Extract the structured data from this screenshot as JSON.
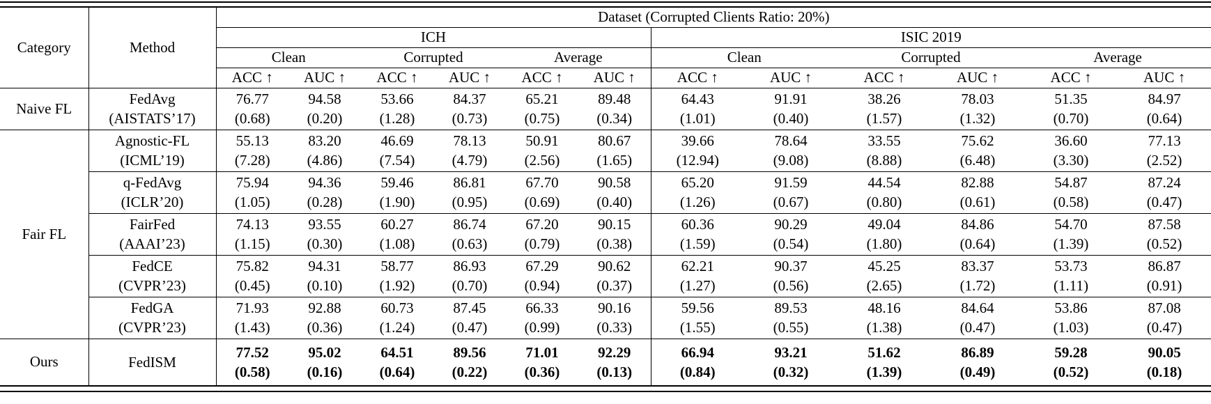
{
  "page": {
    "background": "#ffffff",
    "text_color": "#000000",
    "rule_color": "#000000"
  },
  "table": {
    "headers": {
      "category": "Category",
      "method": "Method",
      "dataset_title": "Dataset (Corrupted Clients Ratio: 20%)",
      "datasets": [
        "ICH",
        "ISIC 2019"
      ],
      "condition_groups": [
        "Clean",
        "Corrupted",
        "Average"
      ],
      "metrics": [
        "ACC ↑",
        "AUC ↑"
      ]
    },
    "rows": [
      {
        "category": "Naive FL",
        "category_rowspan": 1,
        "method": "FedAvg",
        "venue": "(AISTATS’17)",
        "bold": false,
        "values": [
          "76.77",
          "94.58",
          "53.66",
          "84.37",
          "65.21",
          "89.48",
          "64.43",
          "91.91",
          "38.26",
          "78.03",
          "51.35",
          "84.97"
        ],
        "stds": [
          "(0.68)",
          "(0.20)",
          "(1.28)",
          "(0.73)",
          "(0.75)",
          "(0.34)",
          "(1.01)",
          "(0.40)",
          "(1.57)",
          "(1.32)",
          "(0.70)",
          "(0.64)"
        ]
      },
      {
        "category": "Fair FL",
        "category_rowspan": 5,
        "method": "Agnostic-FL",
        "venue": "(ICML’19)",
        "bold": false,
        "values": [
          "55.13",
          "83.20",
          "46.69",
          "78.13",
          "50.91",
          "80.67",
          "39.66",
          "78.64",
          "33.55",
          "75.62",
          "36.60",
          "77.13"
        ],
        "stds": [
          "(7.28)",
          "(4.86)",
          "(7.54)",
          "(4.79)",
          "(2.56)",
          "(1.65)",
          "(12.94)",
          "(9.08)",
          "(8.88)",
          "(6.48)",
          "(3.30)",
          "(2.52)"
        ]
      },
      {
        "method": "q-FedAvg",
        "venue": "(ICLR’20)",
        "bold": false,
        "values": [
          "75.94",
          "94.36",
          "59.46",
          "86.81",
          "67.70",
          "90.58",
          "65.20",
          "91.59",
          "44.54",
          "82.88",
          "54.87",
          "87.24"
        ],
        "stds": [
          "(1.05)",
          "(0.28)",
          "(1.90)",
          "(0.95)",
          "(0.69)",
          "(0.40)",
          "(1.26)",
          "(0.67)",
          "(0.80)",
          "(0.61)",
          "(0.58)",
          "(0.47)"
        ]
      },
      {
        "method": "FairFed",
        "venue": "(AAAI’23)",
        "bold": false,
        "values": [
          "74.13",
          "93.55",
          "60.27",
          "86.74",
          "67.20",
          "90.15",
          "60.36",
          "90.29",
          "49.04",
          "84.86",
          "54.70",
          "87.58"
        ],
        "stds": [
          "(1.15)",
          "(0.30)",
          "(1.08)",
          "(0.63)",
          "(0.79)",
          "(0.38)",
          "(1.59)",
          "(0.54)",
          "(1.80)",
          "(0.64)",
          "(1.39)",
          "(0.52)"
        ]
      },
      {
        "method": "FedCE",
        "venue": "(CVPR’23)",
        "bold": false,
        "values": [
          "75.82",
          "94.31",
          "58.77",
          "86.93",
          "67.29",
          "90.62",
          "62.21",
          "90.37",
          "45.25",
          "83.37",
          "53.73",
          "86.87"
        ],
        "stds": [
          "(0.45)",
          "(0.10)",
          "(1.92)",
          "(0.70)",
          "(0.94)",
          "(0.37)",
          "(1.27)",
          "(0.56)",
          "(2.65)",
          "(1.72)",
          "(1.11)",
          "(0.91)"
        ]
      },
      {
        "method": "FedGA",
        "venue": "(CVPR’23)",
        "bold": false,
        "values": [
          "71.93",
          "92.88",
          "60.73",
          "87.45",
          "66.33",
          "90.16",
          "59.56",
          "89.53",
          "48.16",
          "84.64",
          "53.86",
          "87.08"
        ],
        "stds": [
          "(1.43)",
          "(0.36)",
          "(1.24)",
          "(0.47)",
          "(0.99)",
          "(0.33)",
          "(1.55)",
          "(0.55)",
          "(1.38)",
          "(0.47)",
          "(1.03)",
          "(0.47)"
        ]
      },
      {
        "category": "Ours",
        "category_rowspan": 1,
        "method": "FedISM",
        "venue": "",
        "bold": true,
        "values": [
          "77.52",
          "95.02",
          "64.51",
          "89.56",
          "71.01",
          "92.29",
          "66.94",
          "93.21",
          "51.62",
          "86.89",
          "59.28",
          "90.05"
        ],
        "stds": [
          "(0.58)",
          "(0.16)",
          "(0.64)",
          "(0.22)",
          "(0.36)",
          "(0.13)",
          "(0.84)",
          "(0.32)",
          "(1.39)",
          "(0.49)",
          "(0.52)",
          "(0.18)"
        ]
      }
    ]
  }
}
